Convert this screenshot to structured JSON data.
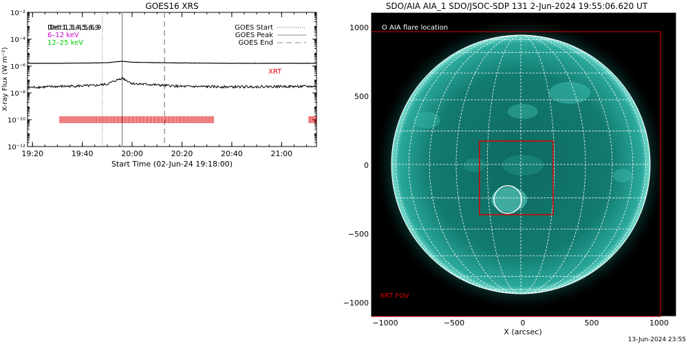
{
  "goes": {
    "title": "GOES16 XRS",
    "ylabel": "X-ray Flux (W m⁻²)",
    "xlabel": "Start Time (02-Jun-24 19:18:00)",
    "legend_det": "Det:1,3,4,5,6,9",
    "legend_det2": "Det:1,3,4,5,6,9",
    "legend_612": "6–12 keV",
    "legend_1225": "12–25 keV",
    "legend_start": "GOES Start",
    "legend_peak": "GOES Peak",
    "legend_end": "GOES End",
    "xrt_label": "XRT",
    "colors": {
      "612": "#cc00cc",
      "1225": "#00cc00",
      "xrt": "#dd0000"
    }
  },
  "aia": {
    "title": "SDO/AIA AIA_1 SDO/JSOC-SDP 131  2-Jun-2024 19:55:06.620 UT",
    "flare_label": "O AIA flare location",
    "fov_label": "XRT FOV",
    "xlabel": "X (arcsec)",
    "xticks": [
      "−1000",
      "−500",
      "0",
      "500",
      "1000"
    ],
    "yticks": [
      "1000",
      "500",
      "0",
      "−500",
      "−1000"
    ],
    "sun_color": "#1a8a80"
  },
  "footer_timestamp": "13-Jun-2024 23:55",
  "chart_data": [
    {
      "type": "line",
      "title": "GOES16 XRS",
      "xlabel": "Start Time (02-Jun-24 19:18:00)",
      "ylabel": "X-ray Flux (W m⁻²)",
      "y_scale": "log",
      "ylim": [
        1e-12,
        0.01
      ],
      "xlim_minutes_after_1918": [
        0,
        116
      ],
      "x_ticks": [
        "19:20",
        "19:40",
        "20:00",
        "20:20",
        "20:40",
        "21:00"
      ],
      "y_ticks": [
        "10⁻¹²",
        "10⁻¹⁰",
        "10⁻⁸",
        "10⁻⁶",
        "10⁻⁴",
        "10⁻²"
      ],
      "series": [
        {
          "name": "upper channel",
          "x": [
            "19:18",
            "19:30",
            "19:45",
            "19:50",
            "19:56",
            "20:00",
            "20:20",
            "20:40",
            "21:00",
            "21:14"
          ],
          "values": [
            1.6e-06,
            1.6e-06,
            1.7e-06,
            1.8e-06,
            2.3e-06,
            1.9e-06,
            1.7e-06,
            1.6e-06,
            1.6e-06,
            1.6e-06
          ]
        },
        {
          "name": "lower channel",
          "x": [
            "19:18",
            "19:30",
            "19:45",
            "19:50",
            "19:56",
            "20:00",
            "20:20",
            "20:40",
            "21:00",
            "21:14"
          ],
          "values": [
            2.5e-08,
            3e-08,
            3.5e-08,
            4.5e-08,
            1.3e-07,
            5e-08,
            3e-08,
            2.8e-08,
            3e-08,
            3e-08
          ]
        }
      ],
      "markers": {
        "goes_start": "19:48",
        "goes_peak": "19:56",
        "goes_end": "20:13"
      },
      "xrt_intervals": [
        [
          "19:31",
          "20:33"
        ],
        [
          "21:11",
          "21:14"
        ]
      ],
      "xrt_level": 1e-10
    },
    {
      "type": "scatter",
      "title": "SDO/AIA AIA_1 SDO/JSOC-SDP 131  2-Jun-2024 19:55:06.620 UT",
      "xlabel": "X (arcsec)",
      "xlim": [
        -1100,
        1100
      ],
      "ylim": [
        -1100,
        1050
      ],
      "flare_location": {
        "x": -30,
        "y": -260,
        "radius": 100
      },
      "xrt_inner_box": {
        "x": [
          -320,
          220
        ],
        "y": [
          -360,
          170
        ]
      },
      "xrt_fov_box": {
        "x": [
          -1000,
          1000
        ],
        "y": [
          -1100,
          970
        ]
      },
      "solar_radius_arcsec": 945
    }
  ]
}
